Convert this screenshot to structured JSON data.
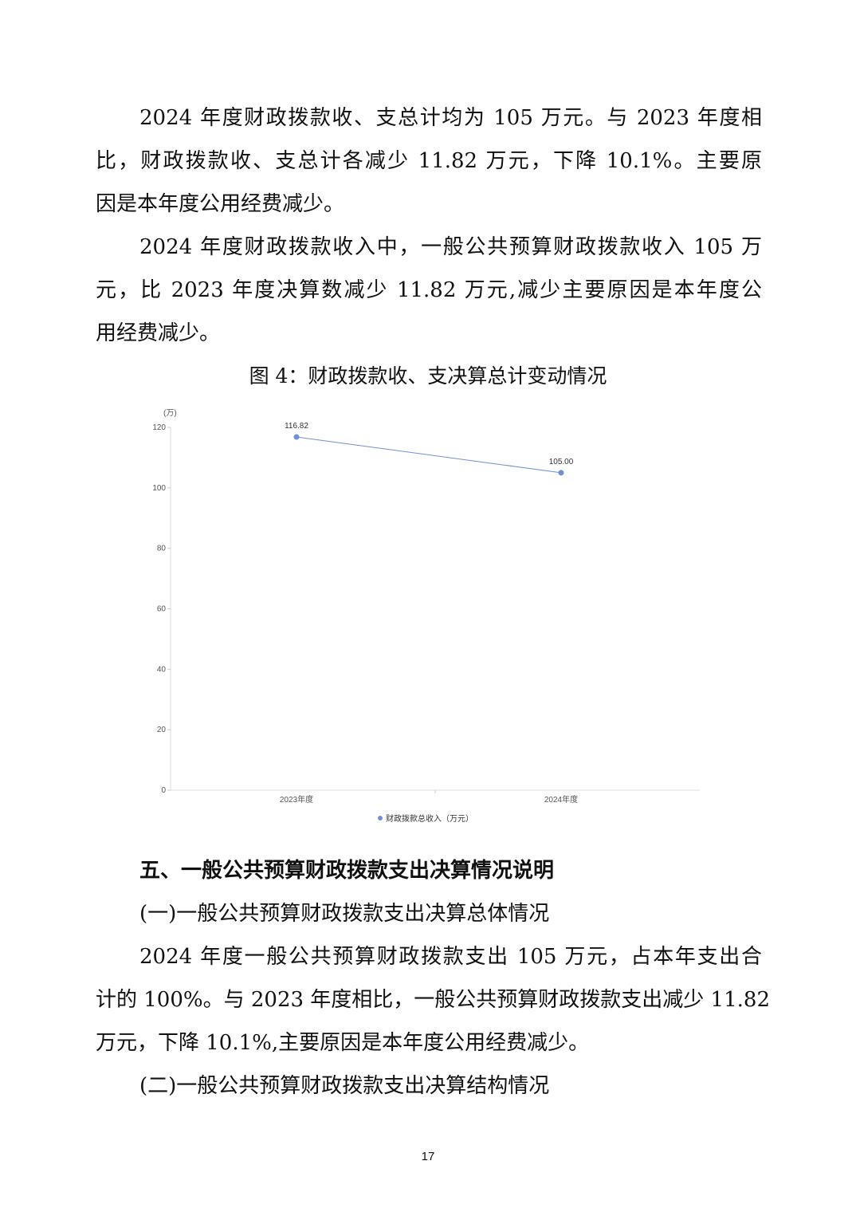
{
  "paragraphs": [
    {
      "lines": [
        "2024 年度财政拨款收、支总计均为 105 万元。与 2023 年度相",
        "比，财政拨款收、支总计各减少 11.82 万元，下降 10.1%。主要原",
        "因是本年度公用经费减少。"
      ]
    },
    {
      "lines": [
        "2024 年度财政拨款收入中，一般公共预算财政拨款收入 105 万",
        "元，比 2023 年度决算数减少 11.82 万元,减少主要原因是本年度公",
        "用经费减少。"
      ]
    }
  ],
  "figure_caption": "图 4：财政拨款收、支决算总计变动情况",
  "chart_data": {
    "type": "line",
    "unit_label": "(万)",
    "categories": [
      "2023年度",
      "2024年度"
    ],
    "series": [
      {
        "name": "财政拨款总收入（万元）",
        "values": [
          116.82,
          105.0
        ],
        "labels": [
          "116.82",
          "105.00"
        ],
        "color": "#6f8fdc"
      }
    ],
    "yticks": [
      "0",
      "20",
      "40",
      "60",
      "80",
      "100",
      "120"
    ],
    "ylim": [
      0,
      120
    ],
    "legend": "bottom",
    "grid": false
  },
  "section": {
    "heading": "五、一般公共预算财政拨款支出决算情况说明",
    "sub1": "(一)一般公共预算财政拨款支出决算总体情况",
    "para_lines": [
      "2024 年度一般公共预算财政拨款支出 105 万元，占本年支出合",
      "计的 100%。与 2023 年度相比，一般公共预算财政拨款支出减少 11.82",
      "万元，下降 10.1%,主要原因是本年度公用经费减少。"
    ],
    "sub2": "(二)一般公共预算财政拨款支出决算结构情况"
  },
  "page_number": "17"
}
